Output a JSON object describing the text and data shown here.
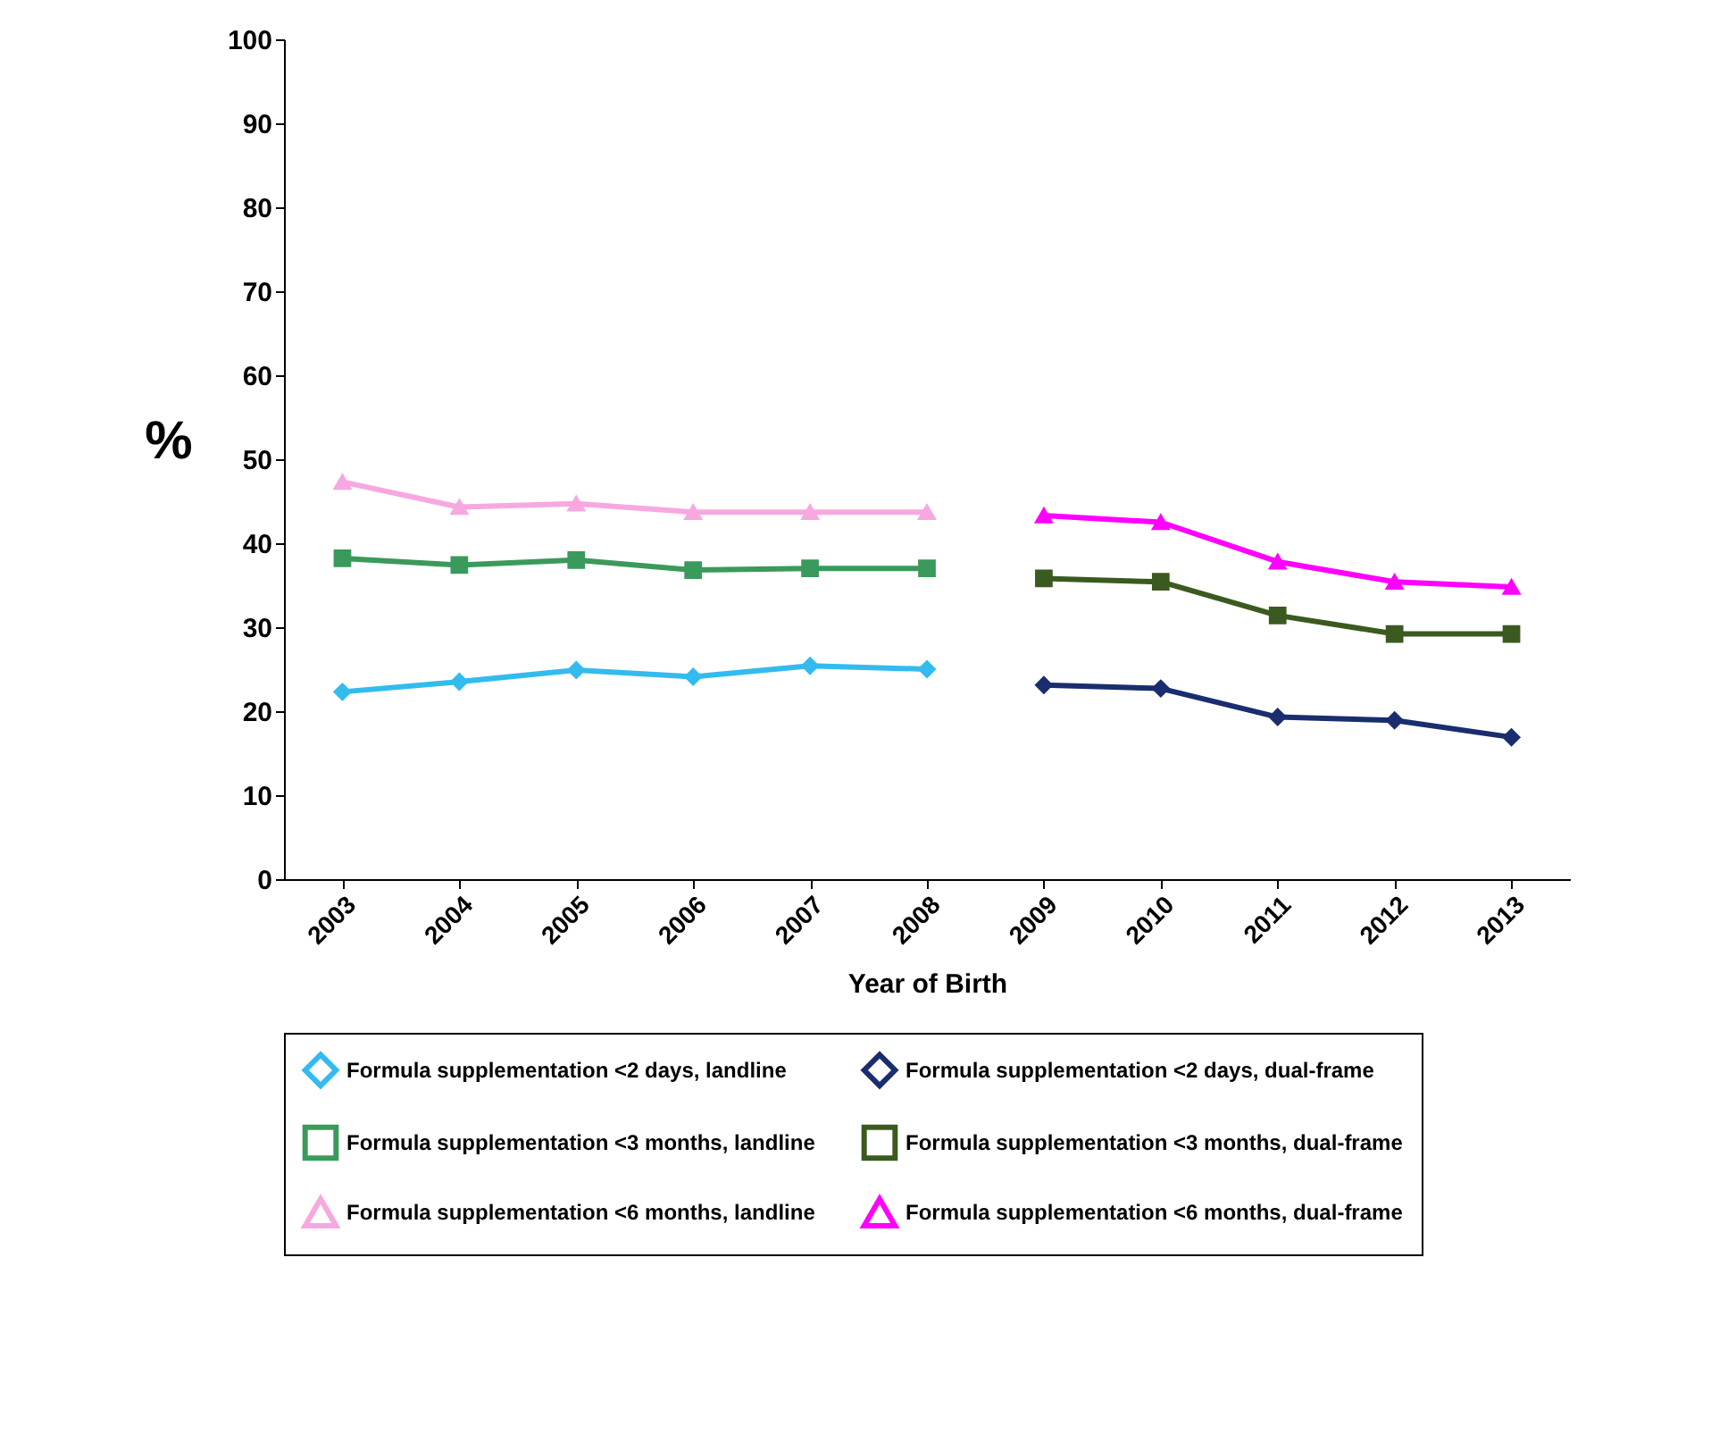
{
  "chart_data": {
    "type": "line",
    "xlabel": "Year of Birth",
    "ylabel": "%",
    "categories": [
      "2003",
      "2004",
      "2005",
      "2006",
      "2007",
      "2008",
      "2009",
      "2010",
      "2011",
      "2012",
      "2013"
    ],
    "ylim": [
      0,
      100
    ],
    "yticks": [
      0,
      10,
      20,
      30,
      40,
      50,
      60,
      70,
      80,
      90,
      100
    ],
    "grid": false,
    "legend": "bottom",
    "series": [
      {
        "name": "Formula supplementation <2 days, landline",
        "color": "#33bbee",
        "marker": "diamond",
        "values": [
          22.3,
          23.5,
          24.9,
          24.1,
          25.4,
          25.0,
          null,
          null,
          null,
          null,
          null
        ]
      },
      {
        "name": "Formula supplementation <2 days, dual-frame",
        "color": "#1a2d6e",
        "marker": "diamond",
        "values": [
          null,
          null,
          null,
          null,
          null,
          null,
          23.1,
          22.7,
          19.3,
          18.9,
          16.9
        ]
      },
      {
        "name": "Formula supplementation <3 months, landline",
        "color": "#3a9a5b",
        "marker": "square",
        "values": [
          38.2,
          37.4,
          38.0,
          36.8,
          37.0,
          37.0,
          null,
          null,
          null,
          null,
          null
        ]
      },
      {
        "name": "Formula supplementation <3 months, dual-frame",
        "color": "#3b5a1f",
        "marker": "square",
        "values": [
          null,
          null,
          null,
          null,
          null,
          null,
          35.8,
          35.4,
          31.4,
          29.2,
          29.2
        ]
      },
      {
        "name": "Formula supplementation <6 months, landline",
        "color": "#f7a8e0",
        "marker": "triangle",
        "values": [
          47.3,
          44.3,
          44.7,
          43.7,
          43.7,
          43.7,
          null,
          null,
          null,
          null,
          null
        ]
      },
      {
        "name": "Formula supplementation <6 months, dual-frame",
        "color": "#ff00ff",
        "marker": "triangle",
        "values": [
          null,
          null,
          null,
          null,
          null,
          null,
          43.3,
          42.5,
          37.8,
          35.4,
          34.8
        ]
      }
    ]
  }
}
